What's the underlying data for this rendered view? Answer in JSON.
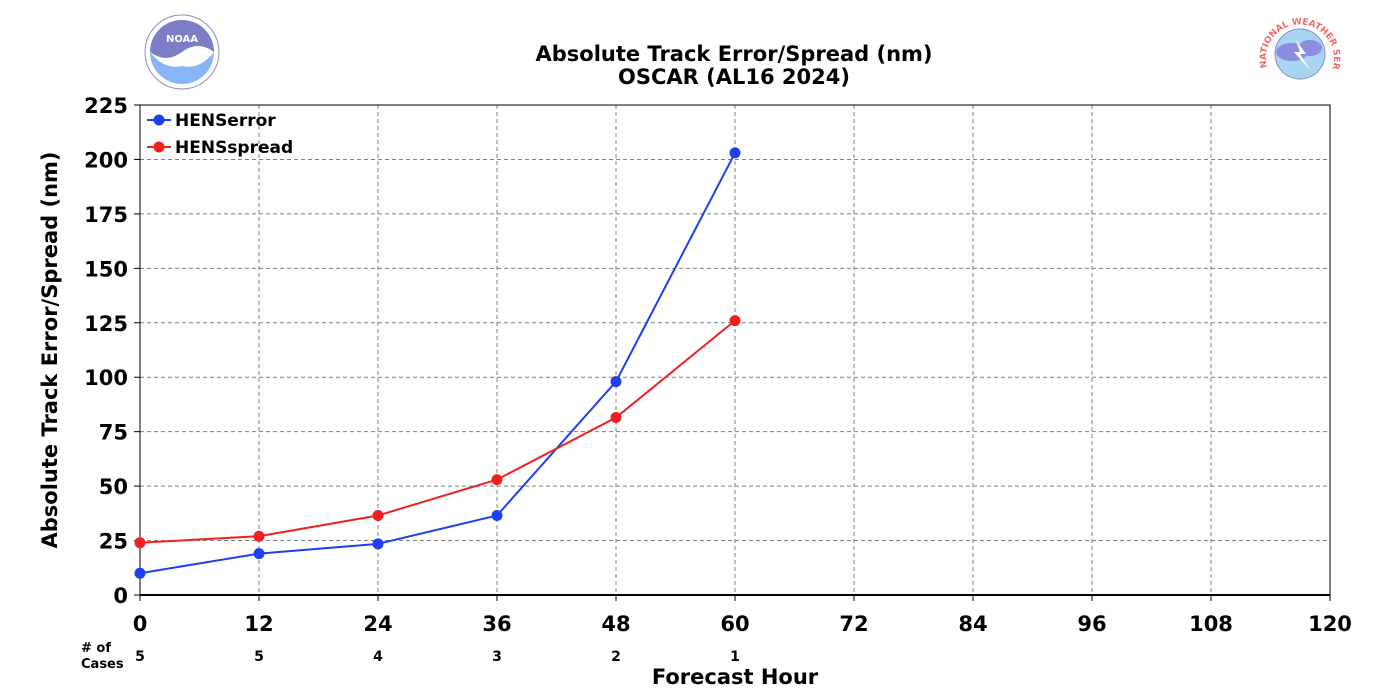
{
  "chart_data": {
    "type": "line",
    "title": "Absolute Track Error/Spread (nm)",
    "subtitle": "OSCAR (AL16 2024)",
    "xlabel": "Forecast Hour",
    "ylabel": "Absolute Track Error/Spread (nm)",
    "xlim": [
      0,
      120
    ],
    "ylim": [
      0,
      225
    ],
    "xticks": [
      0,
      12,
      24,
      36,
      48,
      60,
      72,
      84,
      96,
      108,
      120
    ],
    "yticks": [
      0,
      25,
      50,
      75,
      100,
      125,
      150,
      175,
      200,
      225
    ],
    "grid": true,
    "legend_position": "top-left",
    "x": [
      0,
      12,
      24,
      36,
      48,
      60
    ],
    "series": [
      {
        "name": "HENSerror",
        "color": "#1f3ff0",
        "values": [
          10,
          19,
          23.5,
          36.5,
          98,
          203
        ]
      },
      {
        "name": "HENSspread",
        "color": "#f02020",
        "values": [
          24,
          27,
          36.5,
          53,
          81.5,
          126
        ]
      }
    ],
    "cases": {
      "label_line1": "# of",
      "label_line2": "Cases",
      "values": [
        "5",
        "5",
        "4",
        "3",
        "2",
        "1"
      ]
    }
  },
  "logos": {
    "left": {
      "icon": "noaa-logo-icon",
      "text": "NOAA"
    },
    "right": {
      "icon": "nws-logo-icon",
      "text": "NATIONAL WEATHER SERVICE"
    }
  }
}
